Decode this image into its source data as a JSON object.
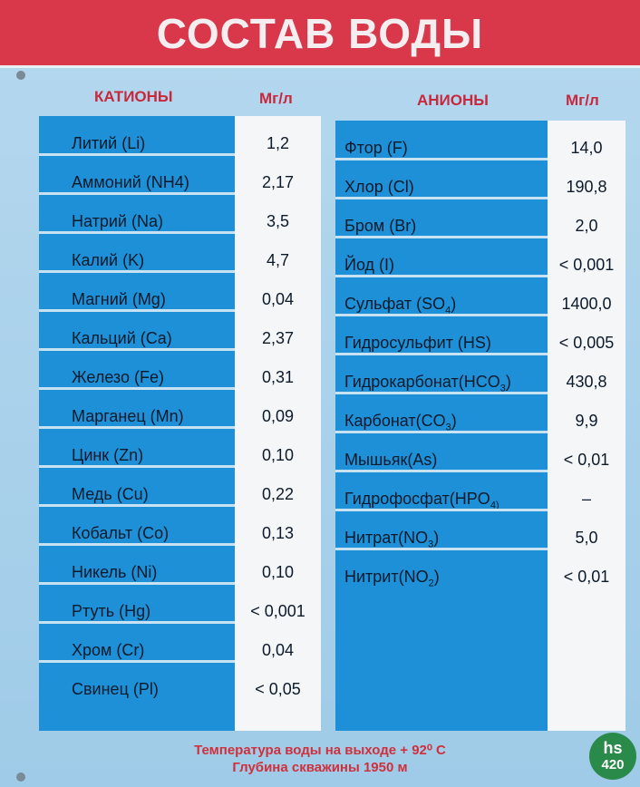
{
  "title": "СОСТАВ ВОДЫ",
  "headers": {
    "cations": "КАТИОНЫ",
    "cations_unit": "Мг/л",
    "anions": "АНИОНЫ",
    "anions_unit": "Мг/л"
  },
  "cations": [
    {
      "name": "Литий (Li)",
      "value": "1,2"
    },
    {
      "name": "Аммоний (NH4)",
      "value": "2,17"
    },
    {
      "name": "Натрий (Na)",
      "value": "3,5"
    },
    {
      "name": "Калий (K)",
      "value": "4,7"
    },
    {
      "name": "Магний (Mg)",
      "value": "0,04"
    },
    {
      "name": "Кальций (Ca)",
      "value": "2,37"
    },
    {
      "name": "Железо (Fe)",
      "value": "0,31"
    },
    {
      "name": "Марганец (Mn)",
      "value": "0,09"
    },
    {
      "name": "Цинк (Zn)",
      "value": "0,10"
    },
    {
      "name": "Медь (Cu)",
      "value": "0,22"
    },
    {
      "name": "Кобальт (Co)",
      "value": "0,13"
    },
    {
      "name": "Никель (Ni)",
      "value": "0,10"
    },
    {
      "name": "Ртуть (Hg)",
      "value": "< 0,001"
    },
    {
      "name": "Хром (Cr)",
      "value": "0,04"
    },
    {
      "name": "Свинец (Pl)",
      "value": "< 0,05"
    }
  ],
  "anions": [
    {
      "name": "Фтор (F)",
      "sub": "",
      "tail": "",
      "value": "14,0"
    },
    {
      "name": "Хлор (Cl)",
      "sub": "",
      "tail": "",
      "value": "190,8"
    },
    {
      "name": "Бром (Br)",
      "sub": "",
      "tail": "",
      "value": "2,0"
    },
    {
      "name": "Йод (I)",
      "sub": "",
      "tail": "",
      "value": "< 0,001"
    },
    {
      "name": "Сульфат (SO",
      "sub": "4",
      "tail": ")",
      "value": "1400,0"
    },
    {
      "name": "Гидросульфит (HS)",
      "sub": "",
      "tail": "",
      "value": "< 0,005"
    },
    {
      "name": "Гидрокарбонат(HCO",
      "sub": "3",
      "tail": ")",
      "value": "430,8"
    },
    {
      "name": "Карбонат(CO",
      "sub": "3",
      "tail": ")",
      "value": "9,9"
    },
    {
      "name": "Мышьяк(As)",
      "sub": "",
      "tail": "",
      "value": "< 0,01"
    },
    {
      "name": "Гидрофосфат(HPO",
      "sub": "4)",
      "tail": "",
      "value": "–"
    },
    {
      "name": "Нитрат(NO",
      "sub": "3",
      "tail": ")",
      "value": "5,0"
    },
    {
      "name": "Нитрит(NO",
      "sub": "2",
      "tail": ")",
      "value": "< 0,01"
    }
  ],
  "footer": {
    "temperature": "Температура воды на выходе + 92⁰ С",
    "depth": "Глубина скважины 1950 м"
  },
  "logo": {
    "line1": "hs",
    "line2": "420"
  },
  "colors": {
    "banner": "#d8384a",
    "panel": "#1e90d8",
    "value_column": "#f4f6f8",
    "header_text": "#c8283c"
  }
}
